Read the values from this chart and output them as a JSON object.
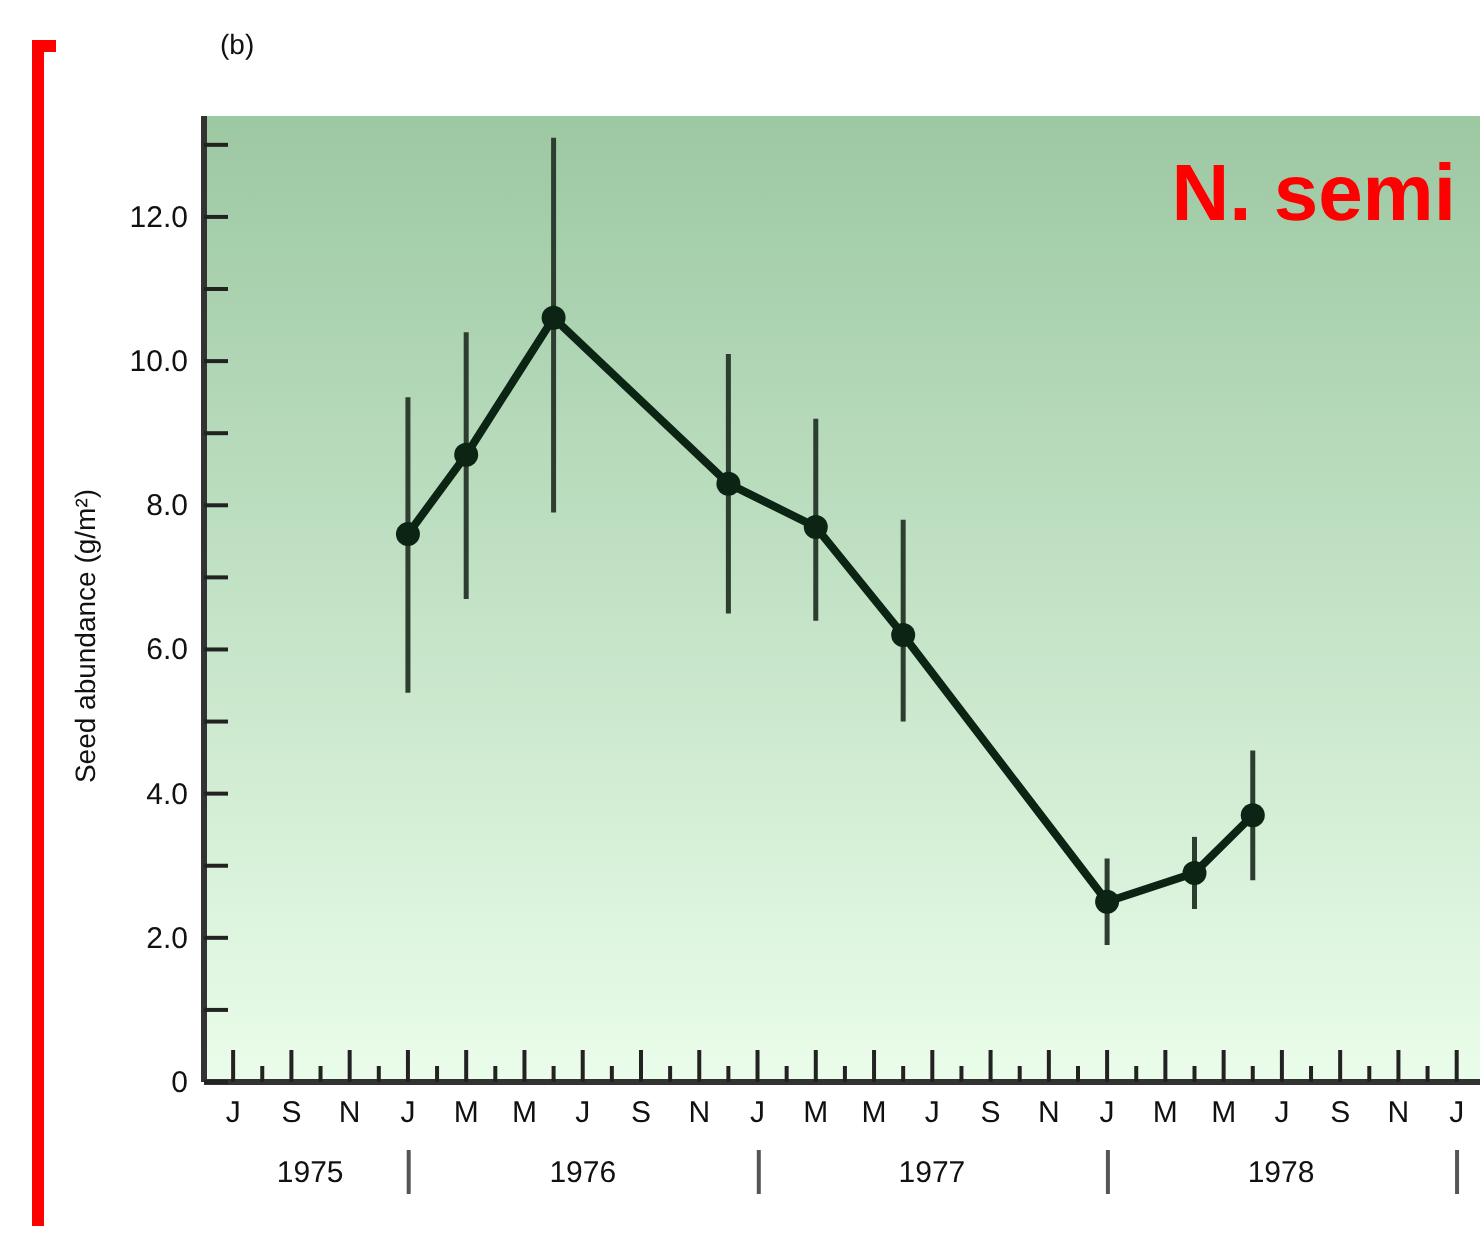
{
  "chart_data": {
    "type": "line",
    "title": "(b)",
    "ylabel": "Seed abundance (g/m²)",
    "annotations": [
      "N. semi"
    ],
    "categories": [
      "J",
      null,
      "S",
      null,
      "N",
      null,
      "J",
      null,
      "M",
      null,
      "M",
      null,
      "J",
      null,
      "S",
      null,
      "N",
      null,
      "J",
      null,
      "M",
      null,
      "M",
      null,
      "J",
      null,
      "S",
      null,
      "N",
      null,
      "J",
      null,
      "M",
      null,
      "M",
      null,
      "J",
      null,
      "S",
      null,
      "N",
      null,
      "J"
    ],
    "series": [
      {
        "color": "#0b2414",
        "values": [
          null,
          null,
          null,
          null,
          null,
          null,
          7.6,
          null,
          8.7,
          null,
          null,
          10.6,
          null,
          null,
          null,
          null,
          null,
          8.3,
          null,
          null,
          7.7,
          null,
          null,
          6.2,
          null,
          null,
          null,
          null,
          null,
          null,
          2.5,
          null,
          null,
          2.9,
          null,
          3.7,
          null,
          null,
          null,
          null,
          null,
          null,
          null
        ],
        "errors": [
          null,
          null,
          null,
          null,
          null,
          null,
          [
            5.4,
            9.5
          ],
          null,
          [
            6.7,
            10.4
          ],
          null,
          null,
          [
            7.9,
            13.1
          ],
          null,
          null,
          null,
          null,
          null,
          [
            6.5,
            10.1
          ],
          null,
          null,
          [
            6.4,
            9.2
          ],
          null,
          null,
          [
            5.0,
            7.8
          ],
          null,
          null,
          null,
          null,
          null,
          null,
          [
            1.9,
            3.1
          ],
          null,
          null,
          [
            2.4,
            3.4
          ],
          null,
          [
            2.8,
            4.6
          ],
          null,
          null,
          null,
          null,
          null,
          null,
          null
        ]
      }
    ],
    "marker": "circle",
    "line_style": "solid",
    "ylim": [
      0,
      13.4
    ],
    "yticks": [
      0,
      {
        "value": 1,
        "label": null
      },
      {
        "value": 2,
        "label": "2.0"
      },
      {
        "value": 3,
        "label": null
      },
      {
        "value": 4,
        "label": "4.0"
      },
      {
        "value": 5,
        "label": null
      },
      {
        "value": 6,
        "label": "6.0"
      },
      {
        "value": 7,
        "label": null
      },
      {
        "value": 8,
        "label": "8.0"
      },
      {
        "value": 9,
        "label": null
      },
      {
        "value": 10,
        "label": "10.0"
      },
      {
        "value": 11,
        "label": null
      },
      {
        "value": 12,
        "label": "12.0"
      },
      {
        "value": 13,
        "label": null
      }
    ],
    "x2lim": [
      "1975-06-01",
      "1979-01-25"
    ],
    "x2ticks": [
      {
        "value": "1975-09-20",
        "label": "1975"
      },
      {
        "value": "1976-01",
        "label": null
      },
      {
        "value": "1976-07",
        "label": "1976"
      },
      {
        "value": "1977-01",
        "label": null
      },
      {
        "value": "1977-07",
        "label": "1977"
      },
      {
        "value": "1978-01",
        "label": null
      },
      {
        "value": "1978-07",
        "label": "1978"
      },
      {
        "value": "1979-01",
        "label": null
      }
    ]
  }
}
